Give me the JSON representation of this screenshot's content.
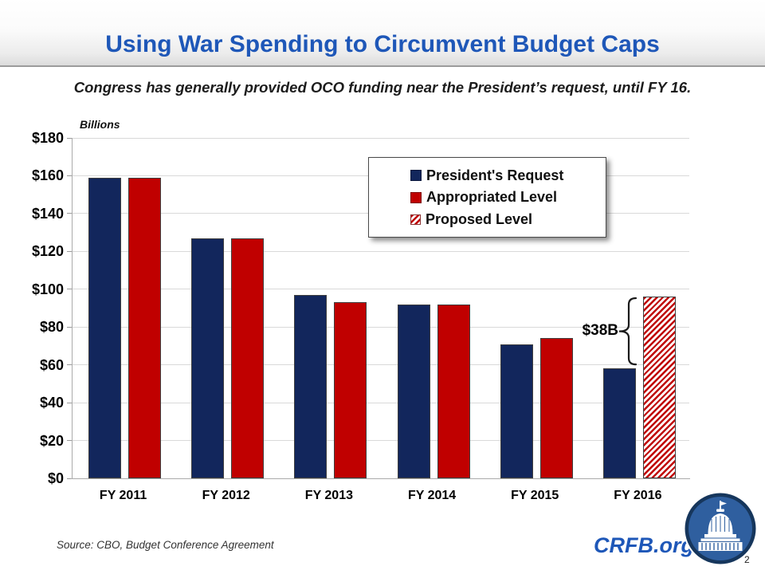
{
  "slide": {
    "title": "Using War Spending to Circumvent Budget Caps",
    "subtitle": "Congress has generally provided OCO funding near the President’s request, until FY 16.",
    "source": "Source: CBO, Budget Conference Agreement",
    "brand": "CRFB.org",
    "page_number": "2",
    "logo_icon": "capitol-dome-logo"
  },
  "colors": {
    "title_blue": "#1E57B8",
    "navy": "#12265C",
    "red": "#C00000",
    "gridline": "#D9D9D9",
    "axis": "#ABABAB",
    "bar_border": "#3F3F3F"
  },
  "chart_data": {
    "type": "bar",
    "title": "",
    "unit_label": "Billions",
    "categories": [
      "FY 2011",
      "FY 2012",
      "FY 2013",
      "FY 2014",
      "FY 2015",
      "FY 2016"
    ],
    "series": [
      {
        "name": "President's Request",
        "style": "solid",
        "color": "#12265C",
        "values": [
          159,
          127,
          97,
          92,
          71,
          58
        ]
      },
      {
        "name": "Appropriated Level",
        "style": "solid",
        "color": "#C00000",
        "values": [
          159,
          127,
          93,
          92,
          74,
          null
        ]
      },
      {
        "name": "Proposed Level",
        "style": "hatched",
        "color": "#C00000",
        "values": [
          null,
          null,
          null,
          null,
          null,
          96
        ]
      }
    ],
    "ylim": [
      0,
      180
    ],
    "ytick_step": 20,
    "ytick_labels": [
      "$0",
      "$20",
      "$40",
      "$60",
      "$80",
      "$100",
      "$120",
      "$140",
      "$160",
      "$180"
    ],
    "grid": true,
    "legend_position": "inside-top-center",
    "annotation": {
      "text": "$38B",
      "category": "FY 2016",
      "from_value": 58,
      "to_value": 96
    }
  }
}
